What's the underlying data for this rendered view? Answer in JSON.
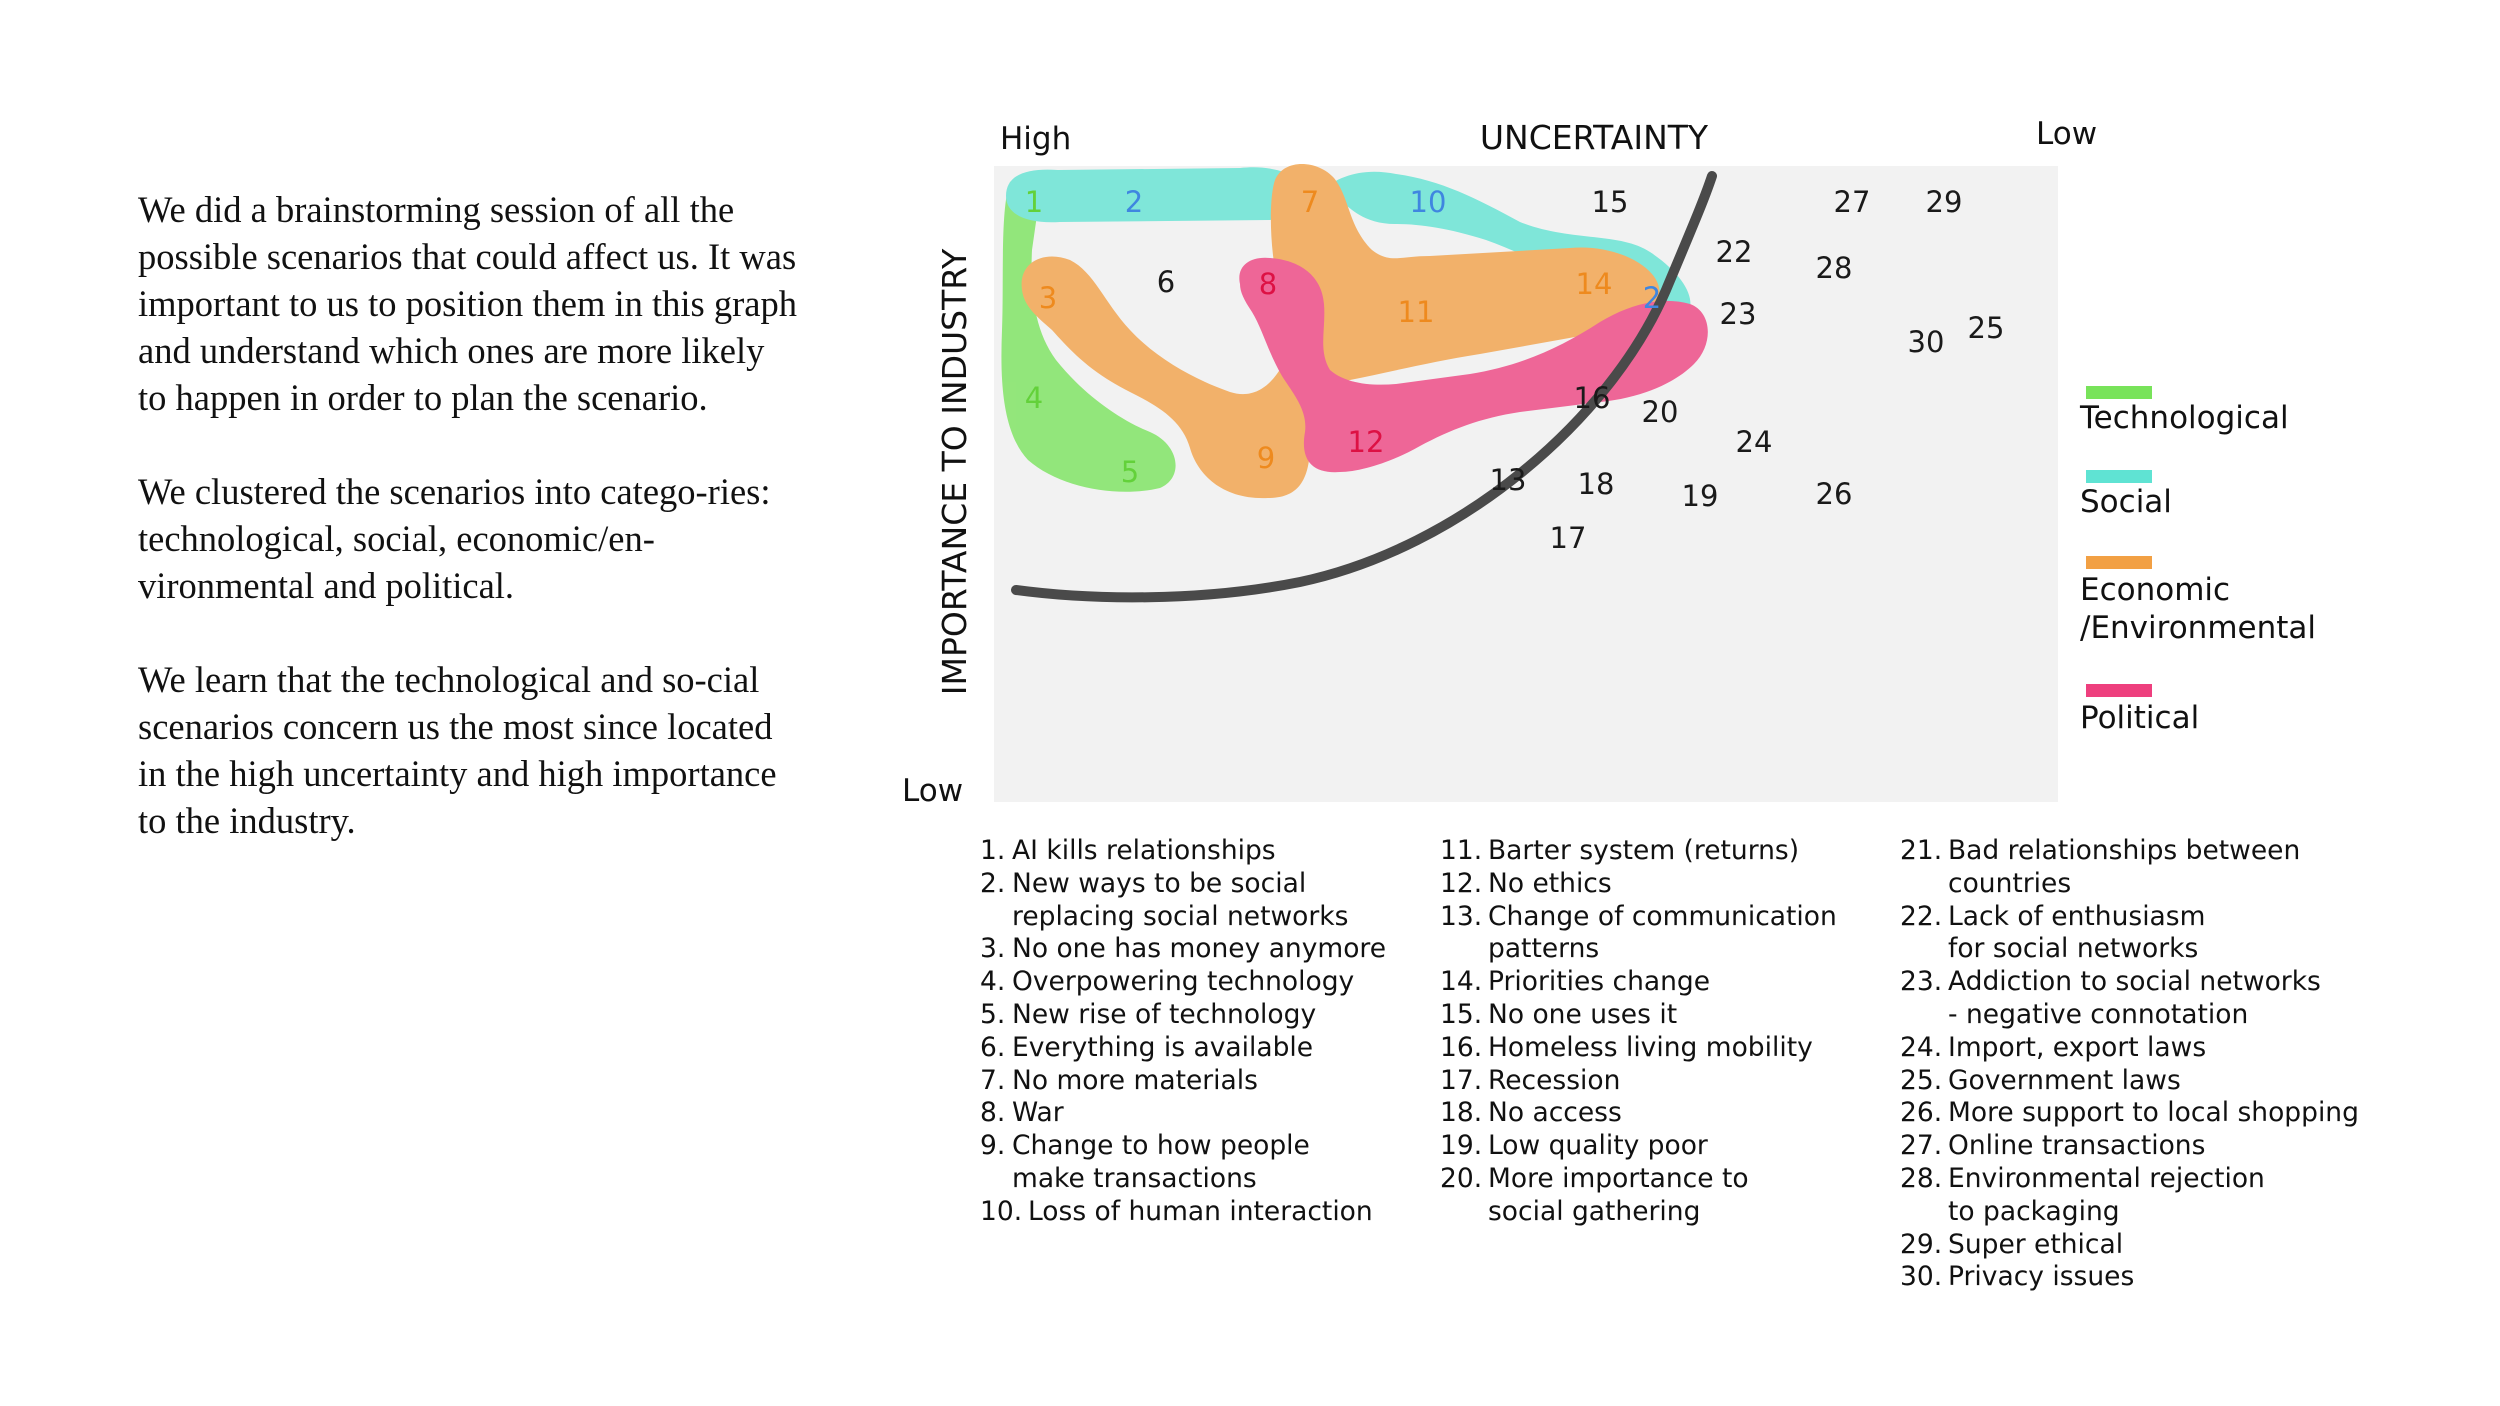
{
  "intro": {
    "paragraph_1": "We did a brainstorming session of all the possible scenarios that could affect us. It was important to us to position them in this graph and understand which ones are more likely to happen in order to plan the scenario.",
    "paragraph_2": "We clustered the scenarios into catego-ries: technological, social, economic/en-vironmental and political.",
    "paragraph_3": "We learn that the technological and so-cial scenarios concern us the most since located in the high uncertainty and high importance to the industry."
  },
  "axes": {
    "x_title": "UNCERTAINTY",
    "x_high": "High",
    "x_low": "Low",
    "y_title": "IMPORTANCE TO INDUSTRY",
    "y_low": "Low"
  },
  "colors": {
    "technological": "#78e35a",
    "social": "#5fe3d3",
    "economic": "#f2a044",
    "political": "#ee3f7e",
    "plot_bg": "#f2f2f2",
    "curve": "#4a4a4a",
    "num_tech": "#63d13a",
    "num_social": "#3f86e0",
    "num_econ": "#ee8a1e",
    "num_pol": "#dd1144",
    "num_default": "#1a1a1a"
  },
  "legend": [
    {
      "label": "Technological",
      "color": "#78e35a"
    },
    {
      "label": "Social",
      "color": "#5fe3d3"
    },
    {
      "label": "Economic\n/Environmental",
      "color": "#f2a044"
    },
    {
      "label": "Political",
      "color": "#ee3f7e"
    }
  ],
  "markers": [
    {
      "label": "1",
      "tone": "num_tech"
    },
    {
      "label": "2",
      "tone": "num_social"
    },
    {
      "label": "7",
      "tone": "num_econ"
    },
    {
      "label": "10",
      "tone": "num_social"
    },
    {
      "label": "15",
      "tone": "num_default"
    },
    {
      "label": "27",
      "tone": "num_default"
    },
    {
      "label": "29",
      "tone": "num_default"
    },
    {
      "label": "22",
      "tone": "num_default"
    },
    {
      "label": "28",
      "tone": "num_default"
    },
    {
      "label": "3",
      "tone": "num_econ"
    },
    {
      "label": "6",
      "tone": "num_default"
    },
    {
      "label": "8",
      "tone": "num_pol"
    },
    {
      "label": "11",
      "tone": "num_econ"
    },
    {
      "label": "14",
      "tone": "num_econ"
    },
    {
      "label": "2",
      "tone": "num_social"
    },
    {
      "label": "23",
      "tone": "num_default"
    },
    {
      "label": "30",
      "tone": "num_default"
    },
    {
      "label": "25",
      "tone": "num_default"
    },
    {
      "label": "4",
      "tone": "num_tech"
    },
    {
      "label": "16",
      "tone": "num_default"
    },
    {
      "label": "20",
      "tone": "num_default"
    },
    {
      "label": "24",
      "tone": "num_default"
    },
    {
      "label": "12",
      "tone": "num_pol"
    },
    {
      "label": "9",
      "tone": "num_econ"
    },
    {
      "label": "5",
      "tone": "num_tech"
    },
    {
      "label": "13",
      "tone": "num_default"
    },
    {
      "label": "18",
      "tone": "num_default"
    },
    {
      "label": "19",
      "tone": "num_default"
    },
    {
      "label": "26",
      "tone": "num_default"
    },
    {
      "label": "17",
      "tone": "num_default"
    }
  ],
  "scenarios": {
    "col1": [
      {
        "num": "1.",
        "text": "AI kills relationships"
      },
      {
        "num": "2.",
        "text": "New ways to be social\nreplacing social networks"
      },
      {
        "num": "3.",
        "text": "No one has money anymore"
      },
      {
        "num": "4.",
        "text": "Overpowering technology"
      },
      {
        "num": "5.",
        "text": "New rise of technology"
      },
      {
        "num": "6.",
        "text": "Everything is available"
      },
      {
        "num": "7.",
        "text": "No more materials"
      },
      {
        "num": "8.",
        "text": "War"
      },
      {
        "num": "9.",
        "text": "Change to how people\nmake transactions"
      },
      {
        "num": "10.",
        "text": "Loss of human interaction"
      }
    ],
    "col2": [
      {
        "num": "11.",
        "text": "Barter system (returns)"
      },
      {
        "num": "12.",
        "text": "No ethics"
      },
      {
        "num": "13.",
        "text": "Change of communication\npatterns"
      },
      {
        "num": "14.",
        "text": "Priorities change"
      },
      {
        "num": "15.",
        "text": "No one uses it"
      },
      {
        "num": "16.",
        "text": "Homeless living mobility"
      },
      {
        "num": "17.",
        "text": "Recession"
      },
      {
        "num": "18.",
        "text": "No access"
      },
      {
        "num": "19.",
        "text": "Low quality poor"
      },
      {
        "num": "20.",
        "text": "More importance to\nsocial gathering"
      }
    ],
    "col3": [
      {
        "num": "21.",
        "text": "Bad relationships between\ncountries"
      },
      {
        "num": "22.",
        "text": "Lack of enthusiasm\nfor social networks"
      },
      {
        "num": "23.",
        "text": "Addiction to social networks\n- negative connotation"
      },
      {
        "num": "24.",
        "text": "Import, export laws"
      },
      {
        "num": "25.",
        "text": "Government laws"
      },
      {
        "num": "26.",
        "text": "More support to local shopping"
      },
      {
        "num": "27.",
        "text": "Online transactions"
      },
      {
        "num": "28.",
        "text": "Environmental rejection\nto packaging"
      },
      {
        "num": "29.",
        "text": "Super ethical"
      },
      {
        "num": "30.",
        "text": "Privacy issues"
      }
    ]
  }
}
